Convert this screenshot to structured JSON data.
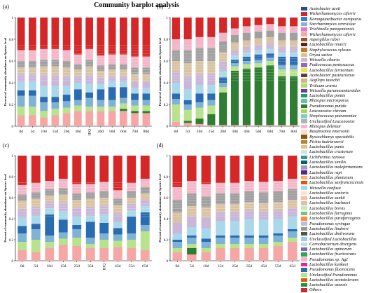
{
  "title": "Community barplot analysis",
  "chart_data": [
    {
      "panel": "(a)",
      "type": "bar",
      "stacked": true,
      "ylabel": "Percent of community abundance on Species level",
      "ylim": [
        0,
        1
      ],
      "yticks": [
        "0",
        "0.2",
        "0.4",
        "0.6",
        "0.8",
        "1"
      ],
      "categories": [
        "0d",
        "5d",
        "10d",
        "15d",
        "20d",
        "30d",
        "HJQ",
        "40d",
        "50d",
        "60d",
        "70d",
        "80d"
      ],
      "bands": [
        {
          "color": "#f4a7a5",
          "values": [
            0.1,
            0.1,
            0.08,
            0.1,
            0.12,
            0.14,
            0.14,
            0.14,
            0.14,
            0.14,
            0.12,
            0.12
          ]
        },
        {
          "color": "#2e7d32",
          "values": [
            0.0,
            0.0,
            0.0,
            0.0,
            0.0,
            0.0,
            0.0,
            0.0,
            0.0,
            0.02,
            0.02,
            0.02
          ]
        },
        {
          "color": "#b9e28c",
          "values": [
            0.08,
            0.08,
            0.06,
            0.06,
            0.05,
            0.05,
            0.04,
            0.04,
            0.04,
            0.05,
            0.05,
            0.05
          ]
        },
        {
          "color": "#7fb3d5",
          "values": [
            0.1,
            0.1,
            0.08,
            0.06,
            0.06,
            0.05,
            0.08,
            0.06,
            0.06,
            0.05,
            0.05,
            0.05
          ]
        },
        {
          "color": "#2b6cb0",
          "values": [
            0.05,
            0.05,
            0.05,
            0.05,
            0.06,
            0.1,
            0.05,
            0.1,
            0.12,
            0.1,
            0.06,
            0.06
          ]
        },
        {
          "color": "#a8d8ea",
          "values": [
            0.08,
            0.08,
            0.1,
            0.1,
            0.08,
            0.06,
            0.08,
            0.05,
            0.05,
            0.05,
            0.05,
            0.05
          ]
        },
        {
          "color": "#c9b6d9",
          "values": [
            0.07,
            0.07,
            0.1,
            0.1,
            0.09,
            0.06,
            0.08,
            0.06,
            0.05,
            0.05,
            0.06,
            0.06
          ]
        },
        {
          "color": "#d9c3a5",
          "values": [
            0.06,
            0.06,
            0.08,
            0.08,
            0.08,
            0.06,
            0.08,
            0.06,
            0.06,
            0.06,
            0.07,
            0.07
          ]
        },
        {
          "color": "#a0a0a0",
          "values": [
            0.06,
            0.06,
            0.06,
            0.06,
            0.06,
            0.05,
            0.06,
            0.05,
            0.05,
            0.05,
            0.06,
            0.06
          ]
        },
        {
          "color": "#f3b6c8",
          "values": [
            0.1,
            0.1,
            0.1,
            0.1,
            0.1,
            0.09,
            0.1,
            0.09,
            0.09,
            0.09,
            0.1,
            0.1
          ]
        },
        {
          "color": "#d62728",
          "values": [
            0.3,
            0.3,
            0.29,
            0.29,
            0.3,
            0.34,
            0.29,
            0.35,
            0.34,
            0.34,
            0.36,
            0.36
          ]
        }
      ]
    },
    {
      "panel": "(b)",
      "type": "bar",
      "stacked": true,
      "ylabel": "Percent of community abundance on Species level",
      "ylim": [
        0,
        1
      ],
      "yticks": [
        "0",
        "0.2",
        "0.4",
        "0.6",
        "0.8",
        "1"
      ],
      "categories": [
        "0d",
        "5d",
        "10d",
        "15d",
        "20d",
        "30d",
        "40d",
        "50d",
        "60d",
        "70d",
        "80d"
      ],
      "bands": [
        {
          "color": "#f4a7a5",
          "values": [
            0.04,
            0.03,
            0.02,
            0.01,
            0.01,
            0.01,
            0.01,
            0.01,
            0.01,
            0.01,
            0.01
          ]
        },
        {
          "color": "#2e7d32",
          "values": [
            0.0,
            0.02,
            0.05,
            0.1,
            0.3,
            0.5,
            0.52,
            0.53,
            0.55,
            0.45,
            0.45
          ]
        },
        {
          "color": "#b9e28c",
          "values": [
            0.16,
            0.1,
            0.1,
            0.08,
            0.05,
            0.04,
            0.04,
            0.04,
            0.04,
            0.06,
            0.06
          ]
        },
        {
          "color": "#7fb3d5",
          "values": [
            0.05,
            0.05,
            0.05,
            0.05,
            0.04,
            0.03,
            0.03,
            0.03,
            0.03,
            0.04,
            0.04
          ]
        },
        {
          "color": "#2b6cb0",
          "values": [
            0.05,
            0.04,
            0.08,
            0.06,
            0.05,
            0.03,
            0.04,
            0.05,
            0.04,
            0.08,
            0.08
          ]
        },
        {
          "color": "#a8d8ea",
          "values": [
            0.1,
            0.1,
            0.08,
            0.08,
            0.06,
            0.04,
            0.04,
            0.04,
            0.04,
            0.04,
            0.04
          ]
        },
        {
          "color": "#c9b6d9",
          "values": [
            0.1,
            0.12,
            0.1,
            0.1,
            0.08,
            0.05,
            0.05,
            0.05,
            0.05,
            0.05,
            0.05
          ]
        },
        {
          "color": "#d9c3a5",
          "values": [
            0.1,
            0.12,
            0.12,
            0.12,
            0.09,
            0.07,
            0.06,
            0.06,
            0.06,
            0.06,
            0.06
          ]
        },
        {
          "color": "#a0a0a0",
          "values": [
            0.1,
            0.12,
            0.12,
            0.12,
            0.1,
            0.07,
            0.07,
            0.06,
            0.06,
            0.07,
            0.07
          ]
        },
        {
          "color": "#f3b6c8",
          "values": [
            0.1,
            0.1,
            0.1,
            0.1,
            0.08,
            0.06,
            0.06,
            0.06,
            0.06,
            0.06,
            0.06
          ]
        },
        {
          "color": "#d62728",
          "values": [
            0.2,
            0.2,
            0.18,
            0.18,
            0.14,
            0.1,
            0.08,
            0.07,
            0.06,
            0.08,
            0.08
          ]
        }
      ]
    },
    {
      "panel": "(c)",
      "type": "bar",
      "stacked": true,
      "ylabel": "Percent of community abundance on Species level",
      "ylim": [
        0,
        1
      ],
      "yticks": [
        "0",
        "0.2",
        "0.4",
        "0.6",
        "0.8",
        "1"
      ],
      "categories": [
        "0d",
        "5d",
        "10d",
        "15d",
        "25d",
        "35d",
        "HJQ",
        "45d",
        "55d",
        "65d"
      ],
      "bands": [
        {
          "color": "#f4a7a5",
          "values": [
            0.1,
            0.08,
            0.12,
            0.15,
            0.14,
            0.12,
            0.12,
            0.13,
            0.12,
            0.1
          ]
        },
        {
          "color": "#2e7d32",
          "values": [
            0.0,
            0.0,
            0.0,
            0.0,
            0.0,
            0.0,
            0.0,
            0.0,
            0.0,
            0.0
          ]
        },
        {
          "color": "#b9e28c",
          "values": [
            0.08,
            0.12,
            0.06,
            0.06,
            0.08,
            0.04,
            0.08,
            0.06,
            0.08,
            0.18
          ]
        },
        {
          "color": "#7fb3d5",
          "values": [
            0.08,
            0.1,
            0.06,
            0.06,
            0.08,
            0.06,
            0.06,
            0.06,
            0.06,
            0.06
          ]
        },
        {
          "color": "#2b6cb0",
          "values": [
            0.07,
            0.05,
            0.2,
            0.12,
            0.04,
            0.15,
            0.1,
            0.06,
            0.16,
            0.12
          ]
        },
        {
          "color": "#a8d8ea",
          "values": [
            0.08,
            0.08,
            0.06,
            0.08,
            0.08,
            0.06,
            0.08,
            0.06,
            0.06,
            0.06
          ]
        },
        {
          "color": "#c9b6d9",
          "values": [
            0.08,
            0.08,
            0.06,
            0.08,
            0.08,
            0.08,
            0.08,
            0.08,
            0.06,
            0.06
          ]
        },
        {
          "color": "#d9c3a5",
          "values": [
            0.08,
            0.08,
            0.06,
            0.08,
            0.08,
            0.08,
            0.08,
            0.08,
            0.06,
            0.06
          ]
        },
        {
          "color": "#a0a0a0",
          "values": [
            0.06,
            0.06,
            0.06,
            0.06,
            0.06,
            0.06,
            0.06,
            0.06,
            0.06,
            0.06
          ]
        },
        {
          "color": "#f3b6c8",
          "values": [
            0.09,
            0.09,
            0.08,
            0.09,
            0.09,
            0.08,
            0.09,
            0.08,
            0.08,
            0.08
          ]
        },
        {
          "color": "#d62728",
          "values": [
            0.28,
            0.26,
            0.24,
            0.22,
            0.27,
            0.27,
            0.25,
            0.33,
            0.26,
            0.22
          ]
        }
      ]
    },
    {
      "panel": "(d)",
      "type": "bar",
      "stacked": true,
      "ylabel": "Percent of community abundance on Species level",
      "ylim": [
        0,
        1
      ],
      "yticks": [
        "0",
        "0.2",
        "0.4",
        "0.6",
        "0.8",
        "1"
      ],
      "categories": [
        "0d",
        "5d",
        "10d",
        "15d",
        "25d",
        "35d",
        "45d",
        "55d",
        "65d"
      ],
      "bands": [
        {
          "color": "#f4a7a5",
          "values": [
            0.08,
            0.06,
            0.08,
            0.12,
            0.12,
            0.12,
            0.12,
            0.14,
            0.18
          ]
        },
        {
          "color": "#2e7d32",
          "values": [
            0.0,
            0.06,
            0.0,
            0.0,
            0.0,
            0.0,
            0.0,
            0.0,
            0.0
          ]
        },
        {
          "color": "#b9e28c",
          "values": [
            0.04,
            0.04,
            0.04,
            0.04,
            0.04,
            0.04,
            0.04,
            0.04,
            0.04
          ]
        },
        {
          "color": "#7fb3d5",
          "values": [
            0.06,
            0.06,
            0.06,
            0.06,
            0.06,
            0.06,
            0.06,
            0.06,
            0.06
          ]
        },
        {
          "color": "#2b6cb0",
          "values": [
            0.02,
            0.02,
            0.03,
            0.02,
            0.02,
            0.02,
            0.02,
            0.02,
            0.02
          ]
        },
        {
          "color": "#a8d8ea",
          "values": [
            0.06,
            0.08,
            0.1,
            0.14,
            0.14,
            0.16,
            0.15,
            0.14,
            0.12
          ]
        },
        {
          "color": "#c9b6d9",
          "values": [
            0.1,
            0.1,
            0.1,
            0.08,
            0.08,
            0.08,
            0.08,
            0.08,
            0.08
          ]
        },
        {
          "color": "#d9c3a5",
          "values": [
            0.1,
            0.1,
            0.1,
            0.08,
            0.08,
            0.08,
            0.08,
            0.08,
            0.08
          ]
        },
        {
          "color": "#a0a0a0",
          "values": [
            0.12,
            0.12,
            0.1,
            0.1,
            0.1,
            0.1,
            0.1,
            0.1,
            0.1
          ]
        },
        {
          "color": "#f3b6c8",
          "values": [
            0.12,
            0.12,
            0.12,
            0.1,
            0.1,
            0.1,
            0.1,
            0.1,
            0.1
          ]
        },
        {
          "color": "#d62728",
          "values": [
            0.3,
            0.24,
            0.27,
            0.26,
            0.26,
            0.24,
            0.25,
            0.24,
            0.22
          ]
        }
      ]
    }
  ],
  "legend": [
    {
      "label": "Acetobacter aceti",
      "color": "#1f4e9c"
    },
    {
      "label": "Wickerhamomyces ciferrii",
      "color": "#d62728"
    },
    {
      "label": "Komagataeibacter europaeus",
      "color": "#3b7dd8"
    },
    {
      "label": "Saccharomyces cerevisiae",
      "color": "#7fb3d5"
    },
    {
      "label": "Trichinella patagoniensis",
      "color": "#e377c2"
    },
    {
      "label": "Wickerhamomyces ciferrii",
      "color": "#f4a7a5"
    },
    {
      "label": "Aspergillus ruber",
      "color": "#a0522d"
    },
    {
      "label": "Lactobacillus reuteri",
      "color": "#4a2c1a"
    },
    {
      "label": "Staphylococcus xylosus",
      "color": "#c47a2c"
    },
    {
      "label": "Oryza sativa",
      "color": "#e5c07b"
    },
    {
      "label": "Weissella cibaria",
      "color": "#c9b6d9"
    },
    {
      "label": "Pediococcus pentosaceus",
      "color": "#8e6ab8"
    },
    {
      "label": "Lactobacillus fermentum",
      "color": "#f0e442"
    },
    {
      "label": "Acetobacter pasteurianus",
      "color": "#5d4037"
    },
    {
      "label": "Aegilops tauschii",
      "color": "#d2b48c"
    },
    {
      "label": "Triticum urartu",
      "color": "#b3de69"
    },
    {
      "label": "Weissella paramesenteroides",
      "color": "#6a3d9a"
    },
    {
      "label": "Lactobacillus pontis",
      "color": "#1b9e77"
    },
    {
      "label": "Rhizopus microsporus",
      "color": "#66c2a5"
    },
    {
      "label": "Pseudomonas putida",
      "color": "#2e7d32"
    },
    {
      "label": "Leuconostoc citreum",
      "color": "#a6d854"
    },
    {
      "label": "Streptococcus pneumoniae",
      "color": "#80cdc1"
    },
    {
      "label": "Unclassified Leuconostoc",
      "color": "#b2b2b2"
    },
    {
      "label": "Rhizopus delemar",
      "color": "#f1b6da"
    },
    {
      "label": "Rasamsonia emersonii",
      "color": "#fddbc7"
    },
    {
      "label": "Byssochlamys spectabilis",
      "color": "#8c510a"
    },
    {
      "label": "Pichia kudriavzevii",
      "color": "#bf812d"
    },
    {
      "label": "Lactobacillus panis",
      "color": "#dfc27d"
    },
    {
      "label": "Lactobacillus crustorum",
      "color": "#c7eae5"
    },
    {
      "label": "Lichtheimia ramosa",
      "color": "#35978f"
    },
    {
      "label": "Lactobacillus similis",
      "color": "#01665e"
    },
    {
      "label": "Lactobacillus malefermentans",
      "color": "#9e9ac8"
    },
    {
      "label": "Lactobacillus rapi",
      "color": "#54278f"
    },
    {
      "label": "Lactobacillus plantarum",
      "color": "#fdae6b"
    },
    {
      "label": "Lactobacillus sanfranciscensis",
      "color": "#e6550d"
    },
    {
      "label": "Weissella confusa",
      "color": "#a8d8ea"
    },
    {
      "label": "Lactobacillus senioris",
      "color": "#fee0d2"
    },
    {
      "label": "Lactobacillus sunkii",
      "color": "#fcbba1"
    },
    {
      "label": "Lactobacillus buchneri",
      "color": "#d9c3a5"
    },
    {
      "label": "Lactobacillus brevis",
      "color": "#c7e9c0"
    },
    {
      "label": "Lactobacillus farraginis",
      "color": "#74c476"
    },
    {
      "label": "Lactobacillus parafarraginis",
      "color": "#fd8d3c"
    },
    {
      "label": "Pseudomonas syringae",
      "color": "#bcbddc"
    },
    {
      "label": "Lactobacillus lindneri",
      "color": "#969696"
    },
    {
      "label": "Lactobacillus diolivorans",
      "color": "#525252"
    },
    {
      "label": "Unclassified Lactobacillus",
      "color": "#9ecae1"
    },
    {
      "label": "Carnobacterium divergens",
      "color": "#c6dbef"
    },
    {
      "label": "Lactobacillus apinorum",
      "color": "#756bb1"
    },
    {
      "label": "Lactobacillus fructivorans",
      "color": "#31a354"
    },
    {
      "label": "Pseudomonas sp. Ag1",
      "color": "#f3b6c8"
    },
    {
      "label": "Lactobacillus kunkeei",
      "color": "#e7298a"
    },
    {
      "label": "Pseudomonas fluorescens",
      "color": "#2b6cb0"
    },
    {
      "label": "Unclassified Pseudomonas",
      "color": "#b9e28c"
    },
    {
      "label": "Lactobacillus acetotolerans",
      "color": "#d95f02"
    },
    {
      "label": "Lactobacillus ozensis",
      "color": "#1a9641"
    },
    {
      "label": "Others",
      "color": "#d62728"
    }
  ]
}
